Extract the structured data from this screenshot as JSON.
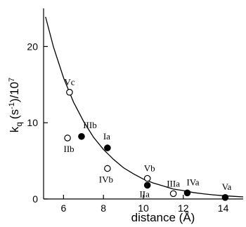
{
  "chart_data": {
    "type": "scatter",
    "xlabel": "distance (Å)",
    "ylabel": "k",
    "ylabel_sub": "q",
    "ylabel_rest": "(s",
    "ylabel_sup1": "-1",
    "ylabel_rest2": ")/10",
    "ylabel_sup2": "7",
    "xlim": [
      5,
      15
    ],
    "ylim": [
      0,
      25
    ],
    "x_ticks": [
      6,
      8,
      10,
      12,
      14
    ],
    "y_ticks": [
      0,
      10,
      20
    ],
    "x_tick_labels": [
      "6",
      "8",
      "10",
      "12",
      "14"
    ],
    "y_tick_labels": [
      "0",
      "10",
      "20"
    ],
    "series": [
      {
        "marker": "open-circle",
        "points": [
          {
            "label": "Vc",
            "x": 6.3,
            "y": 14.0
          },
          {
            "label": "IIb",
            "x": 6.2,
            "y": 8.0
          },
          {
            "label": "IVb",
            "x": 8.2,
            "y": 4.0
          },
          {
            "label": "Vb",
            "x": 10.2,
            "y": 2.7
          },
          {
            "label": "IIIa",
            "x": 11.5,
            "y": 0.7
          }
        ]
      },
      {
        "marker": "filled-circle",
        "points": [
          {
            "label": "IIIb",
            "x": 6.9,
            "y": 8.2
          },
          {
            "label": "Ia",
            "x": 8.2,
            "y": 6.7
          },
          {
            "label": "IIa",
            "x": 10.2,
            "y": 1.8
          },
          {
            "label": "IVa",
            "x": 12.2,
            "y": 0.8
          },
          {
            "label": "Va",
            "x": 14.1,
            "y": 0.2
          }
        ]
      }
    ],
    "fit_curve": {
      "type": "exponential-decay",
      "x": [
        5.1,
        5.5,
        6.0,
        6.5,
        7.0,
        7.5,
        8.0,
        8.5,
        9.0,
        9.5,
        10.0,
        10.5,
        11.0,
        11.5,
        12.0,
        12.5,
        13.0,
        13.5,
        14.0,
        14.5,
        15.0
      ],
      "y": [
        23.9,
        19.9,
        15.9,
        12.7,
        10.2,
        8.1,
        6.5,
        5.2,
        4.1,
        3.3,
        2.6,
        2.1,
        1.7,
        1.3,
        1.1,
        0.85,
        0.68,
        0.54,
        0.43,
        0.35,
        0.28
      ]
    }
  }
}
